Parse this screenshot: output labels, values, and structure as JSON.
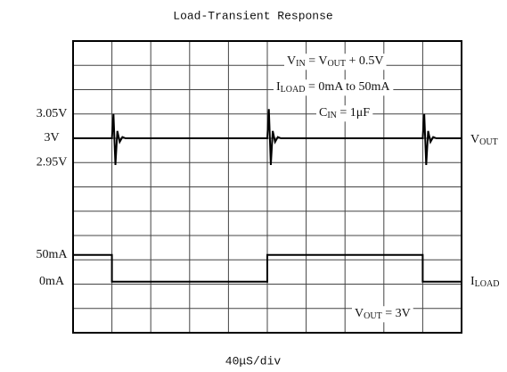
{
  "chart_data": {
    "type": "line",
    "title": "Load-Transient Response",
    "x_label": "40μS/div",
    "xlim": [
      0,
      10
    ],
    "ylim": [
      0,
      12
    ],
    "x_grid": [
      0,
      1,
      2,
      3,
      4,
      5,
      6,
      7,
      8,
      9,
      10
    ],
    "y_grid": [
      0,
      1,
      2,
      3,
      4,
      5,
      6,
      7,
      8,
      9,
      10,
      11,
      12
    ],
    "yticks": [
      {
        "value": 9,
        "label": "3.05V"
      },
      {
        "value": 8,
        "label": "3V"
      },
      {
        "value": 7,
        "label": "2.95V"
      },
      {
        "value": 3.2,
        "label": "50mA"
      },
      {
        "value": 2.1,
        "label": "0mA"
      }
    ],
    "series": [
      {
        "color": "#000000",
        "x": [
          0,
          1,
          1.04,
          1.09,
          1.14,
          1.2,
          1.27,
          1.35,
          5,
          5.04,
          5.09,
          5.14,
          5.2,
          5.27,
          5.35,
          9,
          9.04,
          9.09,
          9.14,
          9.2,
          9.27,
          9.35,
          10
        ],
        "values": [
          8,
          8,
          9,
          6.9,
          8.3,
          7.85,
          8.05,
          8,
          8,
          9.2,
          6.9,
          8.3,
          7.85,
          8.05,
          8,
          8,
          9,
          6.9,
          8.3,
          7.85,
          8.05,
          8,
          8
        ]
      },
      {
        "color": "#000000",
        "x": [
          0,
          1,
          1,
          5,
          5,
          9,
          9,
          10
        ],
        "values": [
          3.2,
          3.2,
          2.1,
          2.1,
          3.2,
          3.2,
          2.1,
          2.1
        ]
      }
    ],
    "annotations": [
      [
        "V",
        "IN",
        " = V",
        "OUT",
        " + 0.5V"
      ],
      [
        "I",
        "LOAD",
        " = 0mA to 50mA"
      ],
      [
        "C",
        "IN",
        " = 1μF"
      ],
      [
        "V",
        "OUT"
      ],
      [
        "I",
        "LOAD"
      ],
      [
        "V",
        "OUT",
        " = 3V"
      ]
    ]
  }
}
